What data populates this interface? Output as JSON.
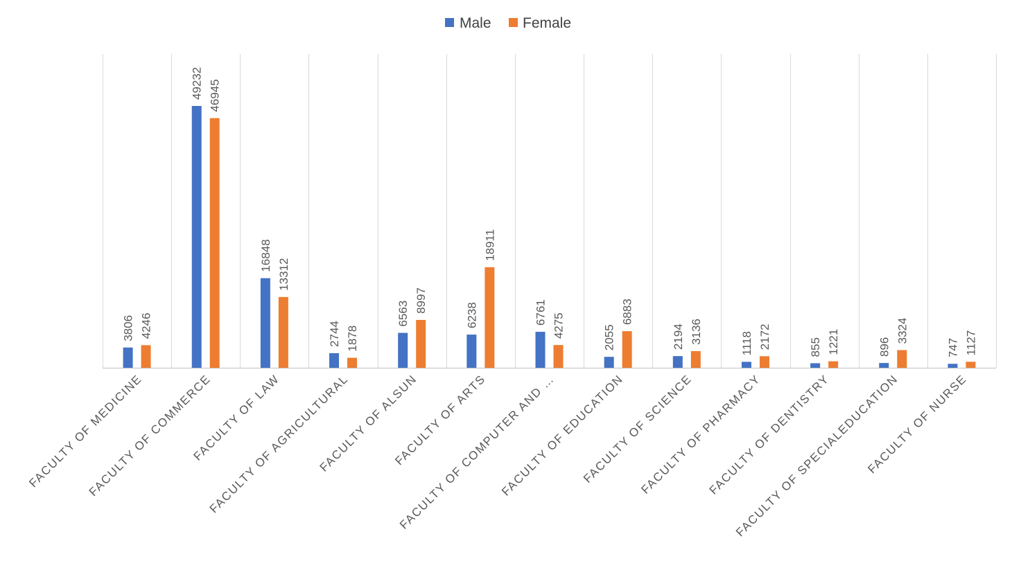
{
  "chart_data": {
    "type": "bar",
    "title": "",
    "xlabel": "",
    "ylabel": "",
    "ylim": [
      0,
      59000
    ],
    "grid": "vertical separators between categories",
    "legend": "top-center",
    "categories": [
      "FACULTY OF MEDICINE",
      "FACULTY OF COMMERCE",
      "FACULTY OF LAW",
      "FACULTY OF AGRICULTURAL",
      "FACULTY OF ALSUN",
      "FACULTY OF ARTS",
      "FACULTY OF COMPUTER AND …",
      "FACULTY OF EDUCATION",
      "FACULTY OF SCIENCE",
      "FACULTY OF PHARMACY",
      "FACULTY OF DENTISTRY",
      "FACULTY OF SPECIALEDUCATION",
      "FACULTY OF NURSE"
    ],
    "series": [
      {
        "name": "Male",
        "color": "#4472c4",
        "values": [
          3806,
          49232,
          16848,
          2744,
          6563,
          6238,
          6761,
          2055,
          2194,
          1118,
          855,
          896,
          747
        ]
      },
      {
        "name": "Female",
        "color": "#ed7d31",
        "values": [
          4246,
          46945,
          13312,
          1878,
          8997,
          18911,
          4275,
          6883,
          3136,
          2172,
          1221,
          3324,
          1127
        ]
      }
    ]
  }
}
